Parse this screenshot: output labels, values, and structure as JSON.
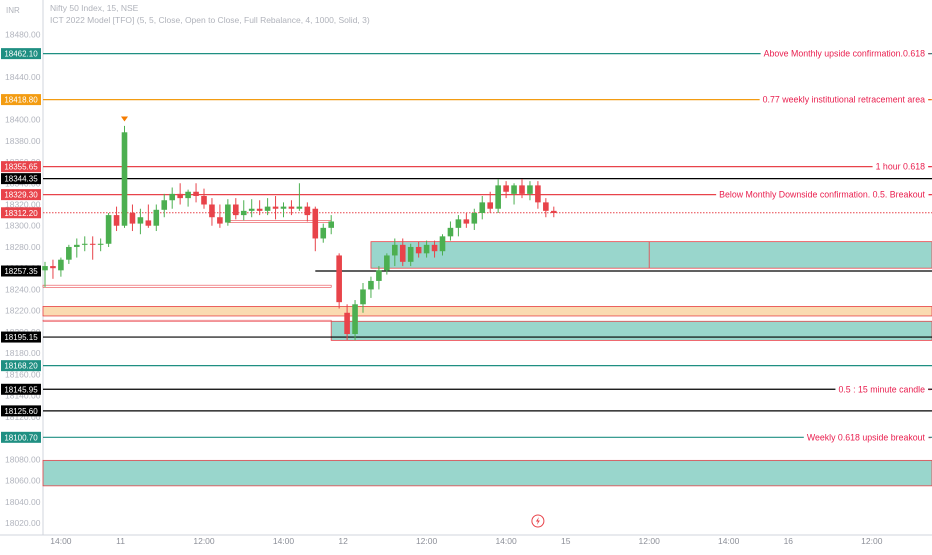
{
  "header": {
    "currency": "INR",
    "symbol_line": "Nifty 50 Index, 15, NSE",
    "indicator_line": "ICT 2022 Model [TFO] (5, 5, Close, Open to Close, Full Rebalance, 4, 1000, Solid, 3)"
  },
  "colors": {
    "up": "#4caf50",
    "down": "#e8434a",
    "teal": "#1f8f82",
    "orange": "#f39c12",
    "red_line": "#e8434a",
    "black_line": "#000000",
    "label_text": "#e91e4e",
    "zone_teal_fill": "#8ed2c6",
    "zone_orange_fill": "#fad7a8"
  },
  "chart_data": {
    "type": "candlestick",
    "y_axis": {
      "min": 18020,
      "max": 18490,
      "ticks": [
        "18480.00",
        "18460.00",
        "18440.00",
        "18420.00",
        "18400.00",
        "18380.00",
        "18360.00",
        "18340.00",
        "18320.00",
        "18300.00",
        "18280.00",
        "18260.00",
        "18240.00",
        "18220.00",
        "18200.00",
        "18180.00",
        "18160.00",
        "18140.00",
        "18120.00",
        "18100.00",
        "18080.00",
        "18060.00",
        "18040.00",
        "18020.00"
      ]
    },
    "x_axis": {
      "labels": [
        {
          "t": 2,
          "text": "14:00"
        },
        {
          "t": 9.5,
          "text": "11"
        },
        {
          "t": 20,
          "text": "12:00"
        },
        {
          "t": 30,
          "text": "14:00"
        },
        {
          "t": 37.5,
          "text": "12"
        },
        {
          "t": 48,
          "text": "12:00"
        },
        {
          "t": 58,
          "text": "14:00"
        },
        {
          "t": 65.5,
          "text": "15"
        },
        {
          "t": 76,
          "text": "12:00"
        },
        {
          "t": 86,
          "text": "14:00"
        },
        {
          "t": 93.5,
          "text": "16"
        },
        {
          "t": 104,
          "text": "12:00"
        }
      ]
    },
    "candles": [
      {
        "o": 18258,
        "h": 18266,
        "l": 18242,
        "c": 18262
      },
      {
        "o": 18262,
        "h": 18268,
        "l": 18250,
        "c": 18260
      },
      {
        "o": 18258,
        "h": 18270,
        "l": 18252,
        "c": 18268
      },
      {
        "o": 18268,
        "h": 18282,
        "l": 18264,
        "c": 18280
      },
      {
        "o": 18280,
        "h": 18288,
        "l": 18270,
        "c": 18282
      },
      {
        "o": 18282,
        "h": 18290,
        "l": 18276,
        "c": 18283
      },
      {
        "o": 18283,
        "h": 18290,
        "l": 18268,
        "c": 18282
      },
      {
        "o": 18282,
        "h": 18288,
        "l": 18276,
        "c": 18283
      },
      {
        "o": 18283,
        "h": 18312,
        "l": 18280,
        "c": 18310
      },
      {
        "o": 18310,
        "h": 18318,
        "l": 18295,
        "c": 18300
      },
      {
        "o": 18300,
        "h": 18394,
        "l": 18298,
        "c": 18388
      },
      {
        "o": 18312,
        "h": 18320,
        "l": 18295,
        "c": 18302
      },
      {
        "o": 18302,
        "h": 18316,
        "l": 18292,
        "c": 18308
      },
      {
        "o": 18305,
        "h": 18320,
        "l": 18298,
        "c": 18300
      },
      {
        "o": 18300,
        "h": 18320,
        "l": 18295,
        "c": 18315
      },
      {
        "o": 18315,
        "h": 18330,
        "l": 18308,
        "c": 18324
      },
      {
        "o": 18324,
        "h": 18336,
        "l": 18316,
        "c": 18330
      },
      {
        "o": 18330,
        "h": 18340,
        "l": 18320,
        "c": 18326
      },
      {
        "o": 18326,
        "h": 18334,
        "l": 18318,
        "c": 18332
      },
      {
        "o": 18332,
        "h": 18340,
        "l": 18322,
        "c": 18328
      },
      {
        "o": 18328,
        "h": 18335,
        "l": 18316,
        "c": 18320
      },
      {
        "o": 18320,
        "h": 18326,
        "l": 18300,
        "c": 18308
      },
      {
        "o": 18308,
        "h": 18320,
        "l": 18298,
        "c": 18302
      },
      {
        "o": 18303,
        "h": 18325,
        "l": 18300,
        "c": 18320
      },
      {
        "o": 18320,
        "h": 18326,
        "l": 18306,
        "c": 18310
      },
      {
        "o": 18310,
        "h": 18324,
        "l": 18305,
        "c": 18314
      },
      {
        "o": 18314,
        "h": 18325,
        "l": 18308,
        "c": 18316
      },
      {
        "o": 18316,
        "h": 18324,
        "l": 18310,
        "c": 18314
      },
      {
        "o": 18314,
        "h": 18326,
        "l": 18310,
        "c": 18318
      },
      {
        "o": 18318,
        "h": 18328,
        "l": 18306,
        "c": 18316
      },
      {
        "o": 18316,
        "h": 18322,
        "l": 18308,
        "c": 18318
      },
      {
        "o": 18318,
        "h": 18324,
        "l": 18310,
        "c": 18316
      },
      {
        "o": 18316,
        "h": 18340,
        "l": 18314,
        "c": 18318
      },
      {
        "o": 18318,
        "h": 18322,
        "l": 18304,
        "c": 18310
      },
      {
        "o": 18316,
        "h": 18318,
        "l": 18276,
        "c": 18288
      },
      {
        "o": 18288,
        "h": 18302,
        "l": 18284,
        "c": 18298
      },
      {
        "o": 18298,
        "h": 18310,
        "l": 18292,
        "c": 18304
      },
      {
        "o": 18272,
        "h": 18274,
        "l": 18222,
        "c": 18228
      },
      {
        "o": 18218,
        "h": 18226,
        "l": 18192,
        "c": 18198
      },
      {
        "o": 18198,
        "h": 18230,
        "l": 18192,
        "c": 18226
      },
      {
        "o": 18226,
        "h": 18246,
        "l": 18218,
        "c": 18240
      },
      {
        "o": 18240,
        "h": 18252,
        "l": 18232,
        "c": 18248
      },
      {
        "o": 18248,
        "h": 18262,
        "l": 18240,
        "c": 18258
      },
      {
        "o": 18258,
        "h": 18274,
        "l": 18254,
        "c": 18272
      },
      {
        "o": 18272,
        "h": 18288,
        "l": 18262,
        "c": 18282
      },
      {
        "o": 18282,
        "h": 18288,
        "l": 18262,
        "c": 18266
      },
      {
        "o": 18266,
        "h": 18283,
        "l": 18262,
        "c": 18280
      },
      {
        "o": 18280,
        "h": 18285,
        "l": 18270,
        "c": 18274
      },
      {
        "o": 18274,
        "h": 18286,
        "l": 18270,
        "c": 18282
      },
      {
        "o": 18282,
        "h": 18286,
        "l": 18270,
        "c": 18276
      },
      {
        "o": 18276,
        "h": 18292,
        "l": 18272,
        "c": 18290
      },
      {
        "o": 18290,
        "h": 18304,
        "l": 18286,
        "c": 18298
      },
      {
        "o": 18298,
        "h": 18310,
        "l": 18290,
        "c": 18306
      },
      {
        "o": 18306,
        "h": 18312,
        "l": 18298,
        "c": 18302
      },
      {
        "o": 18302,
        "h": 18316,
        "l": 18296,
        "c": 18312
      },
      {
        "o": 18312,
        "h": 18328,
        "l": 18306,
        "c": 18322
      },
      {
        "o": 18322,
        "h": 18332,
        "l": 18312,
        "c": 18316
      },
      {
        "o": 18316,
        "h": 18344,
        "l": 18312,
        "c": 18338
      },
      {
        "o": 18338,
        "h": 18342,
        "l": 18326,
        "c": 18332
      },
      {
        "o": 18330,
        "h": 18340,
        "l": 18320,
        "c": 18338
      },
      {
        "o": 18338,
        "h": 18344,
        "l": 18326,
        "c": 18330
      },
      {
        "o": 18330,
        "h": 18342,
        "l": 18324,
        "c": 18338
      },
      {
        "o": 18338,
        "h": 18342,
        "l": 18316,
        "c": 18322
      },
      {
        "o": 18322,
        "h": 18326,
        "l": 18308,
        "c": 18314
      },
      {
        "o": 18314,
        "h": 18318,
        "l": 18308,
        "c": 18312
      }
    ],
    "levels": [
      {
        "price": 18462.1,
        "badge": "18462.10",
        "color": "#1f8f82",
        "label": "Above Monthly upside confirmation.0.618",
        "badge_text_color": "#ffffff"
      },
      {
        "price": 18418.8,
        "badge": "18418.80",
        "color": "#f39c12",
        "label": "0.77 weekly institutional retracement area",
        "badge_text_color": "#ffffff"
      },
      {
        "price": 18355.65,
        "badge": "18355.65",
        "color": "#e8434a",
        "label": "1 hour 0.618",
        "badge_text_color": "#ffffff"
      },
      {
        "price": 18344.35,
        "badge": "18344.35",
        "color": "#000000",
        "label": "",
        "badge_text_color": "#ffffff"
      },
      {
        "price": 18329.3,
        "badge": "18329.30",
        "color": "#e8434a",
        "label": "Below Monthly Downside confirmation. 0.5. Breakout",
        "badge_text_color": "#ffffff"
      },
      {
        "price": 18312.2,
        "badge": "18312.20",
        "color": "#e8434a",
        "label": "",
        "dotted": true,
        "badge_text_color": "#ffffff"
      },
      {
        "price": 18257.35,
        "badge": "18257.35",
        "color": "#000000",
        "label": "",
        "start_t": 34,
        "badge_text_color": "#ffffff"
      },
      {
        "price": 18195.15,
        "badge": "18195.15",
        "color": "#000000",
        "label": "",
        "badge_text_color": "#ffffff"
      },
      {
        "price": 18168.2,
        "badge": "18168.20",
        "color": "#1f8f82",
        "label": "",
        "badge_text_color": "#ffffff"
      },
      {
        "price": 18145.95,
        "badge": "18145.95",
        "color": "#000000",
        "label": "0.5 : 15 minute candle",
        "badge_text_color": "#ffffff"
      },
      {
        "price": 18125.6,
        "badge": "18125.60",
        "color": "#000000",
        "label": "",
        "badge_text_color": "#ffffff"
      },
      {
        "price": 18100.7,
        "badge": "18100.70",
        "color": "#1f8f82",
        "label": "Weekly 0.618 upside breakout",
        "badge_text_color": "#ffffff"
      }
    ],
    "zones": [
      {
        "top": 18285,
        "bottom": 18260,
        "start_t": 41,
        "color": "#8ed2c6",
        "border": "#e8434a",
        "split_t": 76
      },
      {
        "top": 18210,
        "bottom": 18192,
        "start_t": 36,
        "color": "#8ed2c6",
        "border": "#e8434a"
      },
      {
        "top": 18224,
        "bottom": 18215,
        "start_t": -2,
        "color": "#fad7a8",
        "border": "#e8434a"
      },
      {
        "top": 18079,
        "bottom": 18055,
        "start_t": -2,
        "color": "#8ed2c6",
        "border": "#e8434a"
      }
    ],
    "thin_boxes": [
      {
        "top": 18305,
        "bottom": 18303,
        "start_t": 23,
        "end_t": 36
      },
      {
        "top": 18244,
        "bottom": 18242,
        "start_t": -2,
        "end_t": 36
      },
      {
        "top": 18211,
        "bottom": 18210,
        "start_t": -2,
        "end_t": 36
      }
    ],
    "marker": {
      "t": 10,
      "price": 18400,
      "shape": "down-triangle",
      "color": "#f57c00"
    },
    "bottom_icon": {
      "t": 62,
      "name": "lightning"
    }
  }
}
